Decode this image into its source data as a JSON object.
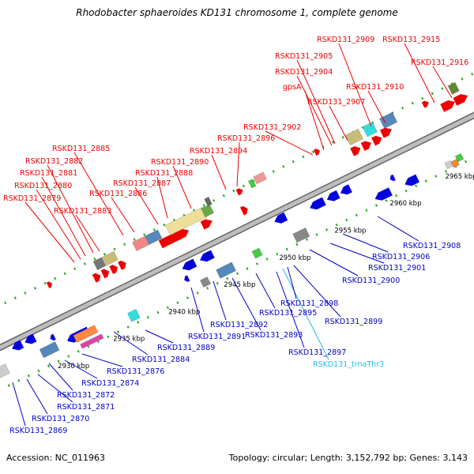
{
  "title": "Rhodobacter sphaeroides KD131 chromosome 1, complete genome",
  "accession_label": "Accession:",
  "accession": "NC_011963",
  "topology_label": "Topology:",
  "topology": "circular",
  "length_label": "Length:",
  "length": "3,152,792 bp",
  "genes_label": "Genes:",
  "genes": "3,143",
  "colors": {
    "forward_label": "#ee0000",
    "reverse_label": "#0000cc",
    "trna_label": "#22bbee",
    "forward_arrow": "#ee0000",
    "reverse_arrow": "#0000dd",
    "backbone": "#999999",
    "tick": "#22aa22"
  },
  "ticks": [
    "2930 kbp",
    "2935 kbp",
    "2940 kbp",
    "2945 kbp",
    "2950 kbp",
    "2955 kbp",
    "2960 kbp",
    "2965 kbp"
  ],
  "labels_top": [
    "RSKD131_2869",
    "RSKD131_2870",
    "RSKD131_2871",
    "RSKD131_2872",
    "RSKD131_2874",
    "RSKD131_2876",
    "RSKD131_2884",
    "RSKD131_2889",
    "RSKD131_2891",
    "RSKD131_2892",
    "RSKD131_2893",
    "RSKD131_2895",
    "RSKD131_2897",
    "RSKD131_trnaThr3",
    "RSKD131_2898",
    "RSKD131_2899",
    "RSKD131_2900",
    "RSKD131_2901",
    "RSKD131_2906",
    "RSKD131_2908"
  ],
  "labels_forward": [
    "RSKD131_2879",
    "RSKD131_2880",
    "RSKD131_2881",
    "RSKD131_2882",
    "RSKD131_2883",
    "RSKD131_2885",
    "RSKD131_2886",
    "RSKD131_2887",
    "RSKD131_2888",
    "RSKD131_2890",
    "RSKD131_2894",
    "RSKD131_2896",
    "RSKD131_2902",
    "gpsA",
    "RSKD131_2904",
    "RSKD131_2905",
    "RSKD131_2907",
    "RSKD131_2909",
    "RSKD131_2910",
    "RSKD131_2915",
    "RSKD131_2916"
  ]
}
